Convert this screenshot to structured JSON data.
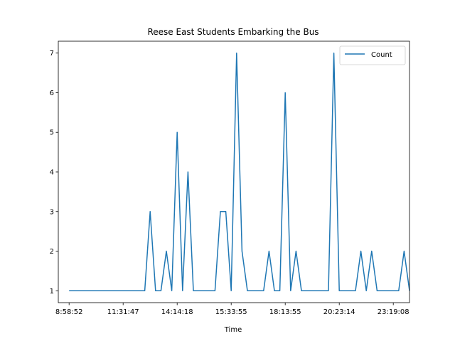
{
  "chart_data": {
    "type": "line",
    "title": "Reese East Students Embarking the Bus",
    "xlabel": "Time",
    "ylabel": "",
    "x_tick_labels": [
      "8:58:52",
      "11:31:47",
      "14:14:18",
      "15:33:55",
      "18:13:55",
      "20:23:14",
      "23:19:08"
    ],
    "x_tick_positions": [
      0,
      10,
      20,
      30,
      40,
      50,
      60
    ],
    "xlim": [
      -2,
      63
    ],
    "yticks": [
      1,
      2,
      3,
      4,
      5,
      6,
      7
    ],
    "ylim": [
      0.7,
      7.3
    ],
    "legend": {
      "position": "upper-right",
      "entries": [
        "Count"
      ]
    },
    "grid": false,
    "series": [
      {
        "name": "Count",
        "color": "#1f77b4",
        "x": [
          0,
          1,
          2,
          3,
          4,
          5,
          6,
          7,
          8,
          9,
          10,
          11,
          12,
          13,
          14,
          15,
          16,
          17,
          18,
          19,
          20,
          21,
          22,
          23,
          24,
          25,
          26,
          27,
          28,
          29,
          30,
          31,
          32,
          33,
          34,
          35,
          36,
          37,
          38,
          39,
          40,
          41,
          42,
          43,
          44,
          45,
          46,
          47,
          48,
          49,
          50,
          51,
          52,
          53,
          54,
          55,
          56,
          57,
          58,
          59,
          60,
          61,
          62,
          63
        ],
        "values": [
          1,
          1,
          1,
          1,
          1,
          1,
          1,
          1,
          1,
          1,
          1,
          1,
          1,
          1,
          1,
          3,
          1,
          1,
          2,
          1,
          5,
          1,
          4,
          1,
          1,
          1,
          1,
          1,
          3,
          3,
          1,
          7,
          2,
          1,
          1,
          1,
          1,
          2,
          1,
          1,
          6,
          1,
          2,
          1,
          1,
          1,
          1,
          1,
          1,
          7,
          1,
          1,
          1,
          1,
          2,
          1,
          2,
          1,
          1,
          1,
          1,
          1,
          2,
          1
        ]
      }
    ]
  }
}
